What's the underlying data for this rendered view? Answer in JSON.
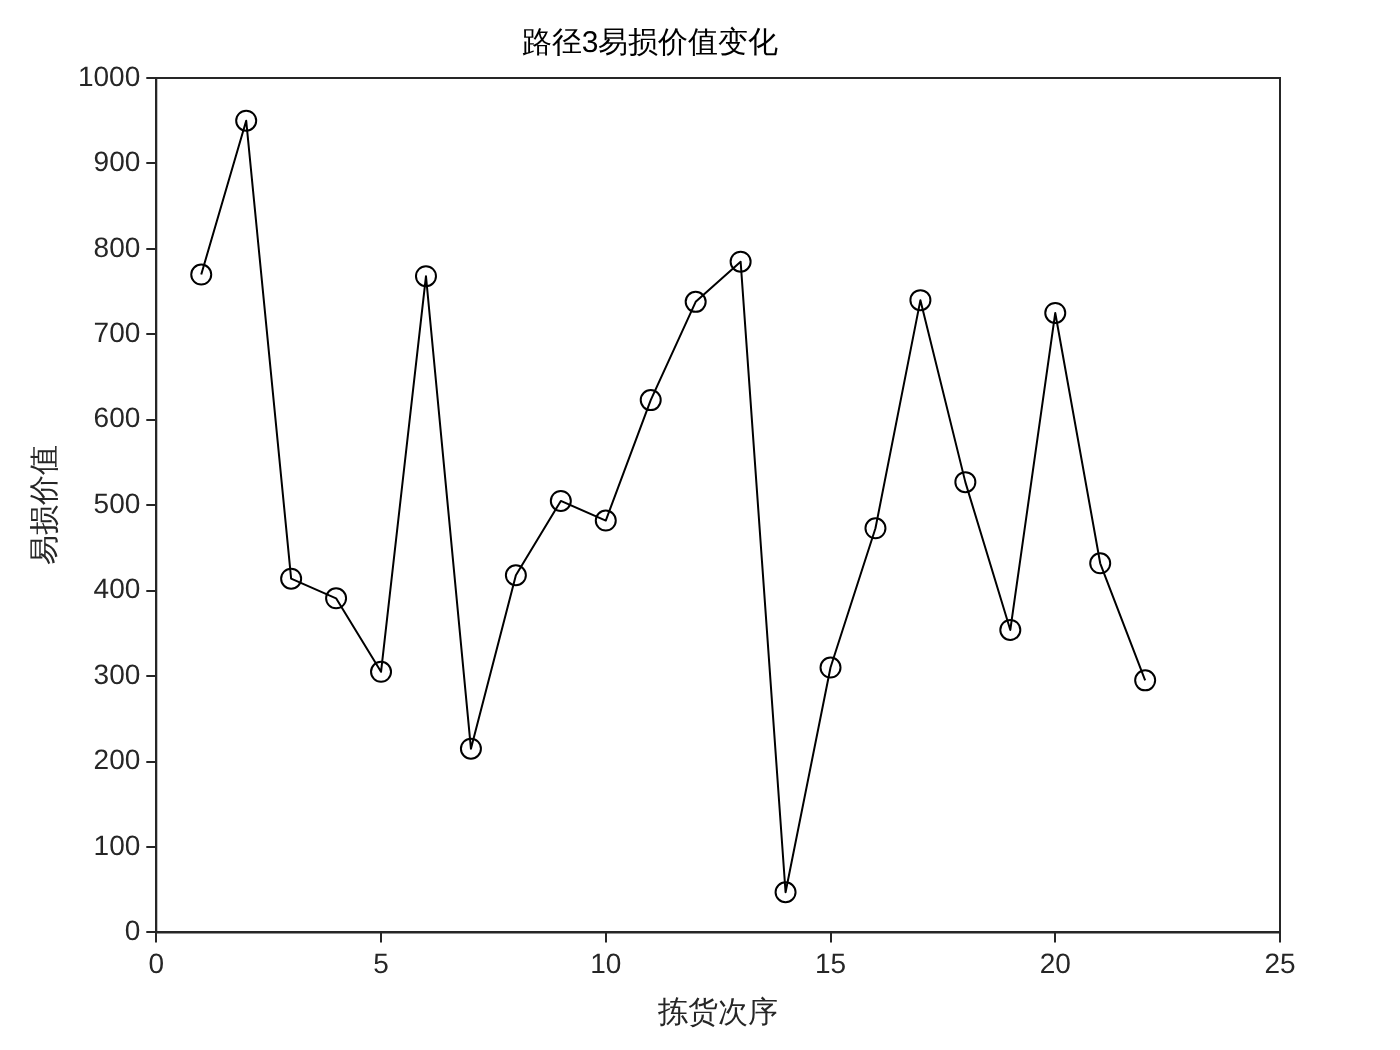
{
  "chart_data": {
    "type": "line",
    "title": "路径3易损价值变化",
    "xlabel": "拣货次序",
    "ylabel": "易损价值",
    "x": [
      1,
      2,
      3,
      4,
      5,
      6,
      7,
      8,
      9,
      10,
      11,
      12,
      13,
      14,
      15,
      16,
      17,
      18,
      19,
      20,
      21,
      22
    ],
    "series": [
      {
        "color": "#000000",
        "values": [
          770,
          950,
          414,
          391,
          305,
          768,
          215,
          418,
          505,
          482,
          623,
          738,
          785,
          47,
          310,
          473,
          740,
          527,
          354,
          725,
          432,
          295
        ]
      }
    ],
    "xlim": [
      0,
      25
    ],
    "xticks": [
      0,
      5,
      10,
      15,
      20,
      25
    ],
    "ylim": [
      0,
      1000
    ],
    "yticks": [
      0,
      100,
      200,
      300,
      400,
      500,
      600,
      700,
      800,
      900,
      1000
    ],
    "grid": false,
    "legend": false,
    "marker": "circle",
    "line_style": "solid"
  }
}
